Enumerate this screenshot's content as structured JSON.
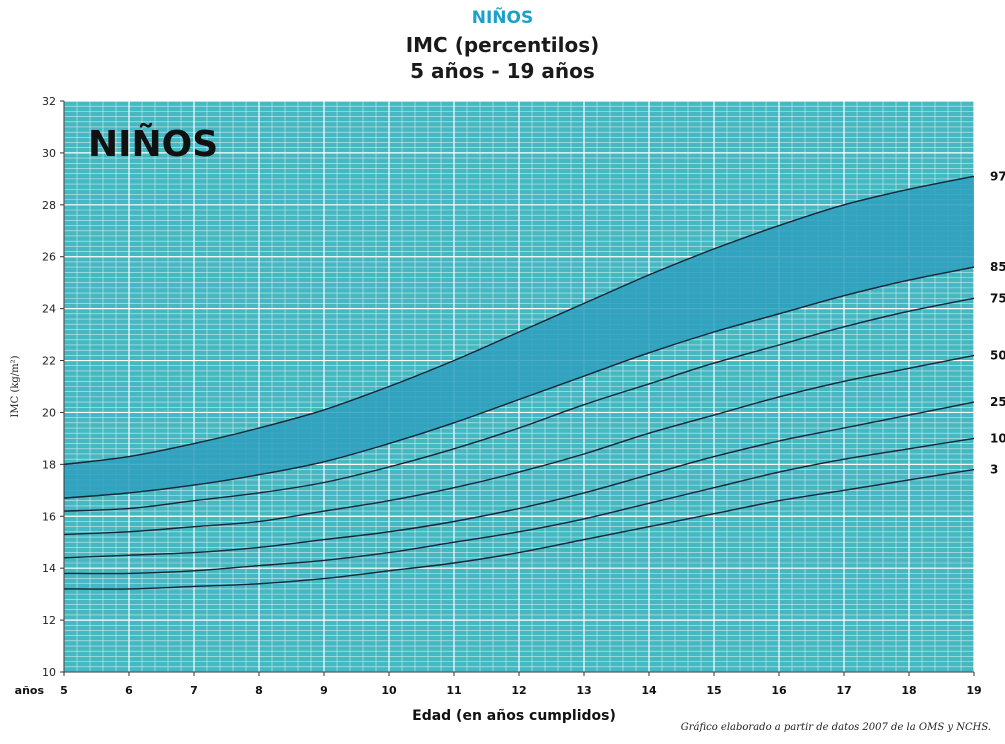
{
  "header": {
    "brand": "NIÑOS",
    "title": "IMC (percentilos)",
    "subtitle": "5 años - 19 años"
  },
  "chart_data": {
    "type": "line",
    "inside_label": "NIÑOS",
    "xlabel": "Edad (en años cumplidos)",
    "xlabel_prefix": "años",
    "ylabel": "IMC (kg/m²)",
    "xlim": [
      5,
      19
    ],
    "ylim": [
      10,
      32
    ],
    "x_ticks": [
      5,
      6,
      7,
      8,
      9,
      10,
      11,
      12,
      13,
      14,
      15,
      16,
      17,
      18,
      19
    ],
    "y_ticks": [
      10,
      12,
      14,
      16,
      18,
      20,
      22,
      24,
      26,
      28,
      30,
      32
    ],
    "grid": true,
    "shaded_band": [
      "97",
      "85"
    ],
    "x": [
      5,
      6,
      7,
      8,
      9,
      10,
      11,
      12,
      13,
      14,
      15,
      16,
      17,
      18,
      19
    ],
    "series": [
      {
        "name": "97",
        "values": [
          18.0,
          18.3,
          18.8,
          19.4,
          20.1,
          21.0,
          22.0,
          23.1,
          24.2,
          25.3,
          26.3,
          27.2,
          28.0,
          28.6,
          29.1
        ]
      },
      {
        "name": "85",
        "values": [
          16.7,
          16.9,
          17.2,
          17.6,
          18.1,
          18.8,
          19.6,
          20.5,
          21.4,
          22.3,
          23.1,
          23.8,
          24.5,
          25.1,
          25.6
        ]
      },
      {
        "name": "75",
        "values": [
          16.2,
          16.3,
          16.6,
          16.9,
          17.3,
          17.9,
          18.6,
          19.4,
          20.3,
          21.1,
          21.9,
          22.6,
          23.3,
          23.9,
          24.4
        ]
      },
      {
        "name": "50",
        "values": [
          15.3,
          15.4,
          15.6,
          15.8,
          16.2,
          16.6,
          17.1,
          17.7,
          18.4,
          19.2,
          19.9,
          20.6,
          21.2,
          21.7,
          22.2
        ]
      },
      {
        "name": "25",
        "values": [
          14.4,
          14.5,
          14.6,
          14.8,
          15.1,
          15.4,
          15.8,
          16.3,
          16.9,
          17.6,
          18.3,
          18.9,
          19.4,
          19.9,
          20.4
        ]
      },
      {
        "name": "10",
        "values": [
          13.8,
          13.8,
          13.9,
          14.1,
          14.3,
          14.6,
          15.0,
          15.4,
          15.9,
          16.5,
          17.1,
          17.7,
          18.2,
          18.6,
          19.0
        ]
      },
      {
        "name": "3",
        "values": [
          13.2,
          13.2,
          13.3,
          13.4,
          13.6,
          13.9,
          14.2,
          14.6,
          15.1,
          15.6,
          16.1,
          16.6,
          17.0,
          17.4,
          17.8
        ]
      }
    ],
    "colors": {
      "background": "#46b8c2",
      "band": "#2e9fbd",
      "grid_minor": "#e2f4f5",
      "grid_major": "#ffffff",
      "curve": "#17253a",
      "brand": "#1aa1c8"
    }
  },
  "footer": {
    "source": "Gráfico elaborado a partir de datos 2007 de la OMS y NCHS."
  }
}
